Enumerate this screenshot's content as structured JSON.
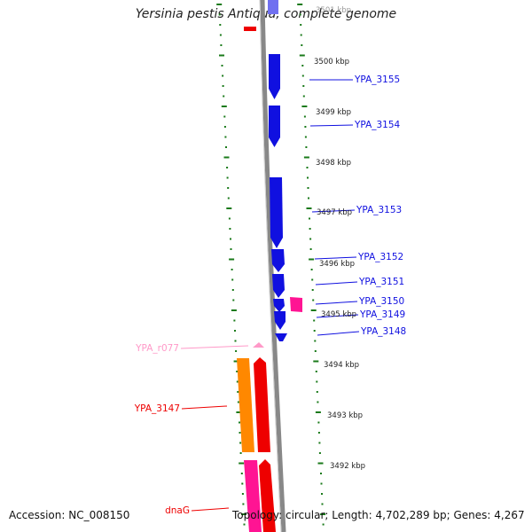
{
  "title": "Yersinia pestis Antiqua, complete genome",
  "footer": {
    "accession": "Accession: NC_008150",
    "stats": "Topology: circular; Length: 4,702,289 bp; Genes: 4,267"
  },
  "colors": {
    "backbone": "#888888",
    "tick": "#1a7a1a",
    "gene_blue": "#1010e0",
    "gene_red": "#ee0000",
    "gene_orange": "#ff8800",
    "gene_pink": "#ff1493",
    "rna_pink": "#ff99c8"
  },
  "scale_labels": [
    "3501 kbp",
    "3500 kbp",
    "3499 kbp",
    "3498 kbp",
    "3497 kbp",
    "3496 kbp",
    "3495 kbp",
    "3494 kbp",
    "3493 kbp",
    "3492 kbp"
  ],
  "gene_labels": [
    {
      "name": "YPA_3155",
      "color": "blue"
    },
    {
      "name": "YPA_3154",
      "color": "blue"
    },
    {
      "name": "YPA_3153",
      "color": "blue"
    },
    {
      "name": "YPA_3152",
      "color": "blue"
    },
    {
      "name": "YPA_3151",
      "color": "blue"
    },
    {
      "name": "YPA_3150",
      "color": "blue"
    },
    {
      "name": "YPA_3149",
      "color": "blue"
    },
    {
      "name": "YPA_3148",
      "color": "blue"
    },
    {
      "name": "YPA_r077",
      "color": "rna"
    },
    {
      "name": "YPA_3147",
      "color": "red"
    },
    {
      "name": "dnaG",
      "color": "red"
    }
  ]
}
